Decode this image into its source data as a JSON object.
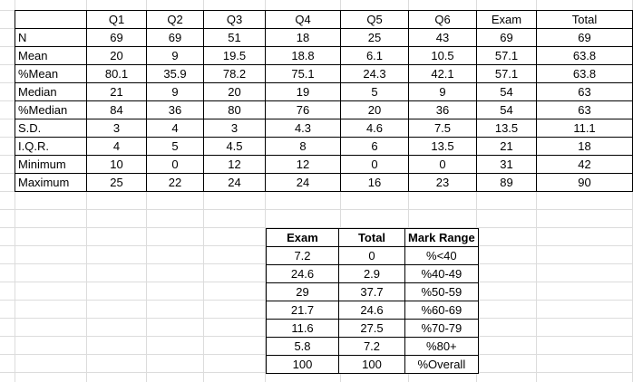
{
  "stats": {
    "headers": [
      "",
      "Q1",
      "Q2",
      "Q3",
      "Q4",
      "Q5",
      "Q6",
      "Exam",
      "Total"
    ],
    "rows": [
      [
        "N",
        "69",
        "69",
        "51",
        "18",
        "25",
        "43",
        "69",
        "69"
      ],
      [
        "Mean",
        "20",
        "9",
        "19.5",
        "18.8",
        "6.1",
        "10.5",
        "57.1",
        "63.8"
      ],
      [
        "%Mean",
        "80.1",
        "35.9",
        "78.2",
        "75.1",
        "24.3",
        "42.1",
        "57.1",
        "63.8"
      ],
      [
        "Median",
        "21",
        "9",
        "20",
        "19",
        "5",
        "9",
        "54",
        "63"
      ],
      [
        "%Median",
        "84",
        "36",
        "80",
        "76",
        "20",
        "36",
        "54",
        "63"
      ],
      [
        "S.D.",
        "3",
        "4",
        "3",
        "4.3",
        "4.6",
        "7.5",
        "13.5",
        "11.1"
      ],
      [
        "I.Q.R.",
        "4",
        "5",
        "4.5",
        "8",
        "6",
        "13.5",
        "21",
        "18"
      ],
      [
        "Minimum",
        "10",
        "0",
        "12",
        "12",
        "0",
        "0",
        "31",
        "42"
      ],
      [
        "Maximum",
        "25",
        "22",
        "24",
        "24",
        "16",
        "23",
        "89",
        "90"
      ]
    ]
  },
  "ranges": {
    "headers": [
      "Exam",
      "Total",
      "Mark Range"
    ],
    "rows": [
      [
        "7.2",
        "0",
        "%<40"
      ],
      [
        "24.6",
        "2.9",
        "%40-49"
      ],
      [
        "29",
        "37.7",
        "%50-59"
      ],
      [
        "21.7",
        "24.6",
        "%60-69"
      ],
      [
        "11.6",
        "27.5",
        "%70-79"
      ],
      [
        "5.8",
        "7.2",
        "%80+"
      ],
      [
        "100",
        "100",
        "%Overall"
      ]
    ]
  }
}
